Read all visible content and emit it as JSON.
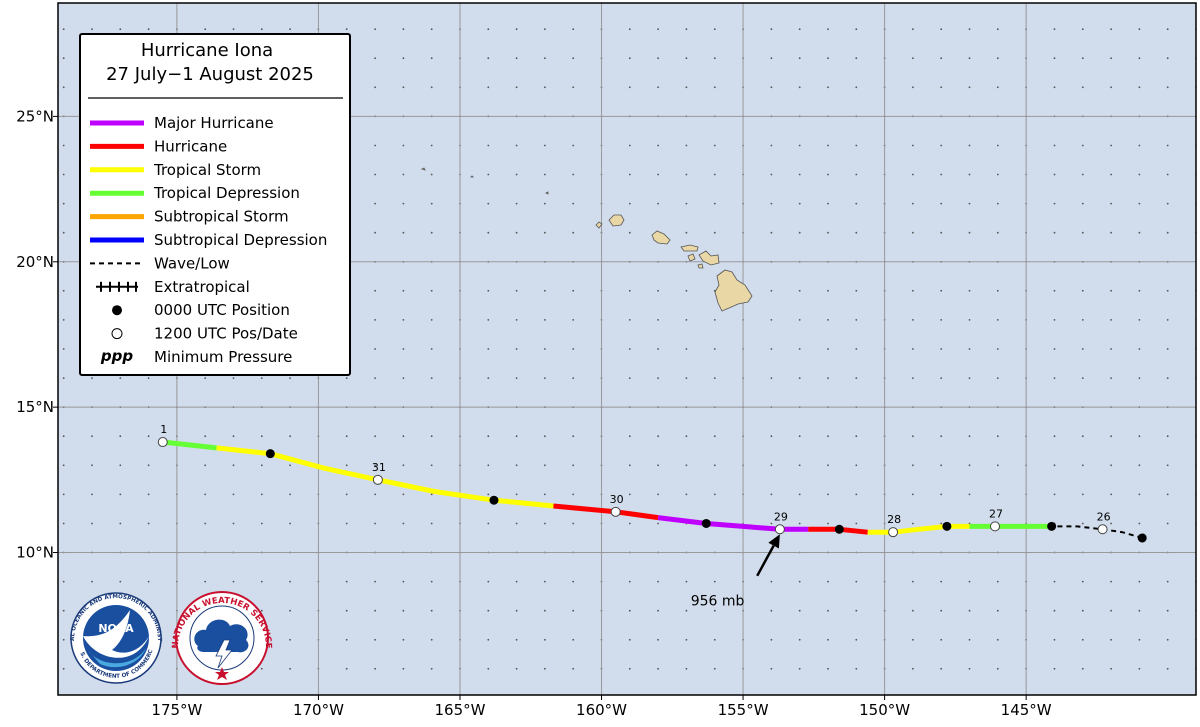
{
  "title": "Hurricane Iona",
  "dates": "27 July−1 August 2025",
  "colors": {
    "ocean": "#d1dcec",
    "land": "#ead7a6",
    "grid": "#999999",
    "major_hurricane": "#c000ff",
    "hurricane": "#ff0000",
    "tropical_storm": "#ffff00",
    "tropical_depression": "#66ff33",
    "subtropical_storm": "#ffa500",
    "subtropical_depression": "#0000ff"
  },
  "legend": [
    {
      "key": "major_hurricane",
      "label": "Major Hurricane",
      "symbol": "line"
    },
    {
      "key": "hurricane",
      "label": "Hurricane",
      "symbol": "line"
    },
    {
      "key": "tropical_storm",
      "label": "Tropical Storm",
      "symbol": "line"
    },
    {
      "key": "tropical_depression",
      "label": "Tropical Depression",
      "symbol": "line"
    },
    {
      "key": "subtropical_storm",
      "label": "Subtropical Storm",
      "symbol": "line"
    },
    {
      "key": "subtropical_depression",
      "label": "Subtropical Depression",
      "symbol": "line"
    },
    {
      "key": "wave_low",
      "label": "Wave/Low",
      "symbol": "dashed"
    },
    {
      "key": "extratropical",
      "label": "Extratropical",
      "symbol": "crossed"
    },
    {
      "key": "pos_0000",
      "label": "0000 UTC Position",
      "symbol": "filled-dot"
    },
    {
      "key": "pos_1200",
      "label": "1200 UTC Pos/Date",
      "symbol": "open-dot"
    },
    {
      "key": "min_pressure",
      "label": "Minimum Pressure",
      "symbol": "ppp",
      "symbol_text": "ppp"
    }
  ],
  "axes": {
    "lon_ticks": [
      -175,
      -170,
      -165,
      -160,
      -155,
      -150,
      -145
    ],
    "lon_tick_labels": [
      "175°W",
      "170°W",
      "165°W",
      "160°W",
      "155°W",
      "150°W",
      "145°W"
    ],
    "lat_ticks": [
      10,
      15,
      20,
      25
    ],
    "lat_tick_labels": [
      "10°N",
      "15°N",
      "20°N",
      "25°N"
    ],
    "lon_range": [
      -179.2,
      -139.0
    ],
    "lat_range": [
      5.1,
      28.9
    ]
  },
  "track": [
    {
      "lat": 10.5,
      "lon": -140.9,
      "status": "wave_low",
      "time": "0000"
    },
    {
      "lat": 10.8,
      "lon": -142.3,
      "status": "wave_low",
      "time": "1200",
      "label": "26"
    },
    {
      "lat": 10.9,
      "lon": -144.1,
      "status": "tropical_depression",
      "time": "0000"
    },
    {
      "lat": 10.9,
      "lon": -146.1,
      "status": "tropical_depression",
      "time": "1200",
      "label": "27"
    },
    {
      "lat": 10.9,
      "lon": -147.8,
      "status": "tropical_storm",
      "time": "0000"
    },
    {
      "lat": 10.7,
      "lon": -149.7,
      "status": "tropical_storm",
      "time": "1200",
      "label": "28"
    },
    {
      "lat": 10.8,
      "lon": -151.6,
      "status": "hurricane",
      "time": "0000"
    },
    {
      "lat": 10.8,
      "lon": -153.7,
      "status": "major_hurricane",
      "time": "1200",
      "label": "29"
    },
    {
      "lat": 11.0,
      "lon": -156.3,
      "status": "major_hurricane",
      "time": "0000"
    },
    {
      "lat": 11.4,
      "lon": -159.5,
      "status": "hurricane",
      "time": "1200",
      "label": "30"
    },
    {
      "lat": 11.8,
      "lon": -163.8,
      "status": "tropical_storm",
      "time": "0000"
    },
    {
      "lat": 12.5,
      "lon": -167.9,
      "status": "tropical_storm",
      "time": "1200",
      "label": "31"
    },
    {
      "lat": 13.4,
      "lon": -171.7,
      "status": "tropical_storm",
      "time": "0000"
    },
    {
      "lat": 13.8,
      "lon": -175.5,
      "status": "tropical_depression",
      "time": "1200",
      "label": "1"
    }
  ],
  "segments": [
    {
      "status": "wave_low",
      "points": [
        [
          -140.9,
          10.5
        ],
        [
          -141.6,
          10.7
        ],
        [
          -142.3,
          10.8
        ],
        [
          -143.2,
          10.9
        ],
        [
          -144.1,
          10.9
        ]
      ]
    },
    {
      "status": "tropical_depression",
      "points": [
        [
          -144.1,
          10.9
        ],
        [
          -146.1,
          10.9
        ],
        [
          -147.0,
          10.9
        ]
      ]
    },
    {
      "status": "tropical_storm",
      "points": [
        [
          -147.0,
          10.9
        ],
        [
          -147.8,
          10.9
        ],
        [
          -148.8,
          10.8
        ],
        [
          -149.7,
          10.7
        ],
        [
          -150.6,
          10.7
        ]
      ]
    },
    {
      "status": "hurricane",
      "points": [
        [
          -150.6,
          10.7
        ],
        [
          -151.6,
          10.8
        ],
        [
          -152.7,
          10.8
        ]
      ]
    },
    {
      "status": "major_hurricane",
      "points": [
        [
          -152.7,
          10.8
        ],
        [
          -153.7,
          10.8
        ],
        [
          -155.0,
          10.9
        ],
        [
          -156.3,
          11.0
        ],
        [
          -158.0,
          11.2
        ]
      ]
    },
    {
      "status": "hurricane",
      "points": [
        [
          -158.0,
          11.2
        ],
        [
          -159.5,
          11.4
        ],
        [
          -161.7,
          11.6
        ]
      ]
    },
    {
      "status": "tropical_storm",
      "points": [
        [
          -161.7,
          11.6
        ],
        [
          -163.8,
          11.8
        ],
        [
          -165.9,
          12.1
        ],
        [
          -167.9,
          12.5
        ],
        [
          -169.8,
          12.9
        ],
        [
          -171.7,
          13.4
        ],
        [
          -173.6,
          13.6
        ]
      ]
    },
    {
      "status": "tropical_depression",
      "points": [
        [
          -173.6,
          13.6
        ],
        [
          -175.5,
          13.8
        ]
      ]
    }
  ],
  "min_pressure": {
    "lat": 10.8,
    "lon": -153.7,
    "text": "956 mb",
    "arrow_from": [
      -154.5,
      9.2
    ],
    "text_at": [
      -155.9,
      8.35
    ]
  },
  "logos": {
    "noaa_text": "NOAA",
    "noaa_ring_text": "NATIONAL OCEANIC AND ATMOSPHERIC ADMINISTRATION",
    "noaa_ring_bottom": "U.S. DEPARTMENT OF COMMERCE",
    "nws_ring_text": "NATIONAL WEATHER SERVICE"
  }
}
